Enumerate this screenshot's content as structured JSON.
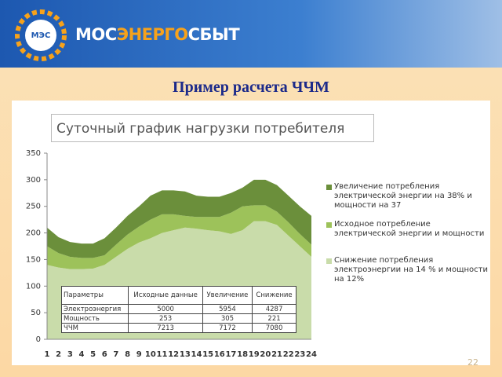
{
  "header": {
    "logo_mark": "МЭС",
    "brand": [
      "МОС",
      "ЭНЕРГО",
      "СБЫТ"
    ]
  },
  "slide_title": "Пример расчета ЧЧМ",
  "chart_data": {
    "type": "area",
    "stacked": true,
    "title": "Суточный график нагрузки потребителя",
    "categories": [
      "1",
      "2",
      "3",
      "4",
      "5",
      "6",
      "7",
      "8",
      "9",
      "10",
      "11",
      "12",
      "13",
      "14",
      "15",
      "16",
      "17",
      "18",
      "19",
      "20",
      "21",
      "22",
      "23",
      "24"
    ],
    "series": [
      {
        "name": "Снижение потребления электроэнергии на 14 % и мощности на 12%",
        "color": "#c9dcaa",
        "values": [
          140,
          135,
          132,
          132,
          133,
          140,
          155,
          170,
          182,
          190,
          200,
          205,
          210,
          208,
          205,
          203,
          198,
          205,
          222,
          222,
          215,
          195,
          175,
          155
        ]
      },
      {
        "name": "Исходное потребление электрической энергии и мощности",
        "color": "#9dc25a",
        "values": [
          35,
          27,
          23,
          21,
          20,
          18,
          23,
          27,
          30,
          35,
          35,
          30,
          22,
          22,
          25,
          27,
          40,
          45,
          30,
          30,
          25,
          25,
          23,
          23
        ]
      },
      {
        "name": "Увеличение потребления электрической энергии на 38% и мощности на 37",
        "color": "#6b8f3b",
        "values": [
          35,
          30,
          28,
          27,
          27,
          32,
          32,
          35,
          38,
          45,
          45,
          45,
          46,
          40,
          38,
          38,
          37,
          35,
          48,
          48,
          50,
          50,
          52,
          54
        ]
      }
    ],
    "ylim": [
      0,
      350
    ],
    "yticks": [
      0,
      50,
      100,
      150,
      200,
      250,
      300,
      350
    ],
    "grid": false,
    "legend": "right"
  },
  "table": {
    "rows": [
      [
        "Параметры",
        "Исходные данные",
        "Увеличение",
        "Снижение"
      ],
      [
        "Электроэнергия",
        "5000",
        "5954",
        "4287"
      ],
      [
        "Мощность",
        "253",
        "305",
        "221"
      ],
      [
        "ЧЧМ",
        "7213",
        "7172",
        "7080"
      ]
    ]
  },
  "slide_number": "22"
}
